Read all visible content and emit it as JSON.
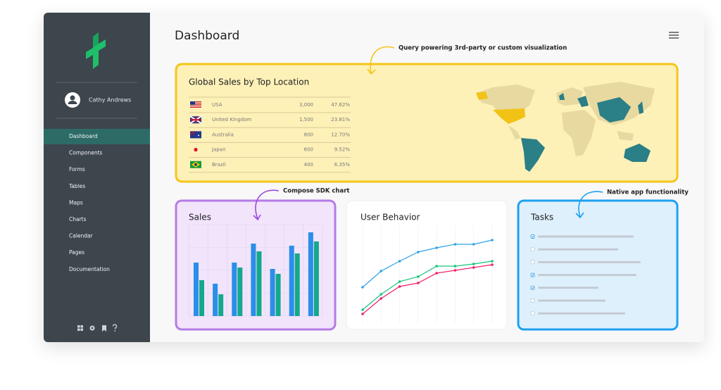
{
  "header": {
    "title": "Dashboard"
  },
  "sidebar": {
    "user": "Cathy Andrews",
    "nav": [
      "Dashboard",
      "Components",
      "Forms",
      "Tables",
      "Maps",
      "Charts",
      "Calendar",
      "Pages",
      "Documentation"
    ],
    "active": 0
  },
  "annotations": [
    "Query powering 3rd-party or custom visualization",
    "Compose SDK chart",
    "Native app functionality"
  ],
  "sales_by_location": {
    "title": "Global Sales by Top Location",
    "rows": [
      [
        "USA",
        "3,000",
        "47.62%"
      ],
      [
        "United Kingdom",
        "1,500",
        "23.81%"
      ],
      [
        "Australia",
        "800",
        "12.70%"
      ],
      [
        "Japan",
        "600",
        "9.52%"
      ],
      [
        "Brazil",
        "400",
        "6.35%"
      ]
    ]
  },
  "chart_data": [
    {
      "type": "bar",
      "title": "Sales",
      "ylim": [
        0,
        130
      ],
      "grid": true,
      "series": [
        {
          "color": "#2b8ee8",
          "values": [
            76,
            46,
            76,
            103,
            67,
            100,
            119
          ]
        },
        {
          "color": "#14a88c",
          "values": [
            51,
            31,
            69,
            92,
            60,
            89,
            106
          ]
        }
      ]
    },
    {
      "type": "line",
      "title": "User Behavior",
      "ylim": [
        0,
        140
      ],
      "grid": true,
      "series": [
        {
          "color": "#2ea3e6",
          "values": [
            52,
            75,
            89,
            102,
            108,
            113,
            113,
            119
          ]
        },
        {
          "color": "#16c47a",
          "values": [
            20,
            42,
            60,
            67,
            82,
            82,
            85,
            89
          ]
        },
        {
          "color": "#ef1f6a",
          "values": [
            14,
            36,
            53,
            58,
            72,
            76,
            80,
            84
          ]
        }
      ]
    }
  ],
  "tasks": {
    "title": "Tasks",
    "checked": [
      true,
      false,
      false,
      true,
      true,
      false,
      false
    ]
  }
}
